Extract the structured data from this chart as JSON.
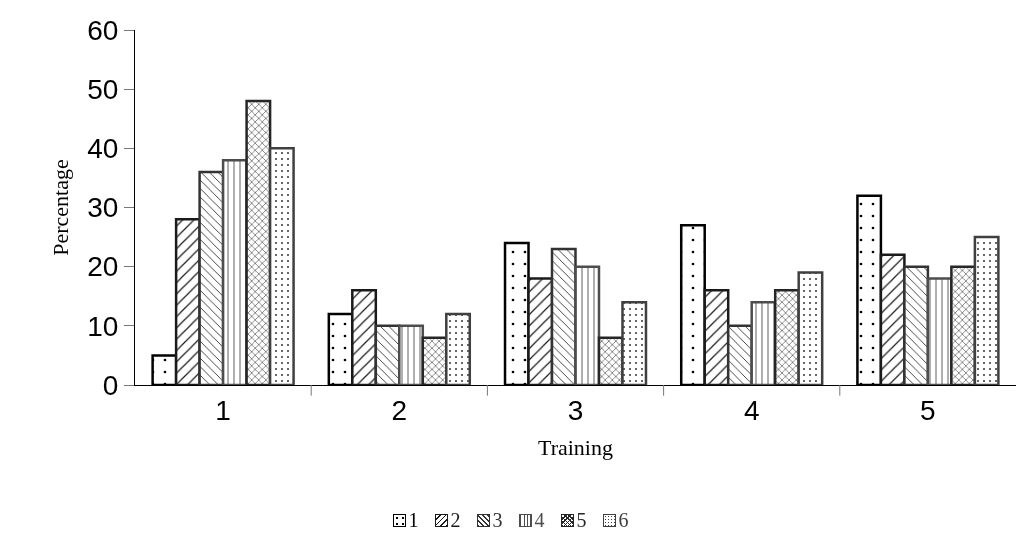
{
  "chart_data": {
    "type": "bar",
    "xlabel": "Training",
    "ylabel": "Percentage",
    "categories": [
      "1",
      "2",
      "3",
      "4",
      "5"
    ],
    "series": [
      {
        "name": "1",
        "color": "#000000",
        "values": [
          5,
          12,
          24,
          27,
          32
        ]
      },
      {
        "name": "2",
        "color": "#1a1a1a",
        "values": [
          28,
          16,
          18,
          16,
          22
        ]
      },
      {
        "name": "3",
        "color": "#333333",
        "values": [
          36,
          10,
          23,
          10,
          20
        ]
      },
      {
        "name": "4",
        "color": "#4d4d4d",
        "values": [
          38,
          10,
          20,
          14,
          18
        ]
      },
      {
        "name": "5",
        "color": "#262626",
        "values": [
          48,
          8,
          8,
          16,
          20
        ]
      },
      {
        "name": "6",
        "color": "#404040",
        "values": [
          40,
          12,
          14,
          19,
          25
        ]
      }
    ],
    "ylim": [
      0,
      60
    ],
    "yticks": [
      0,
      10,
      20,
      30,
      40,
      50,
      60
    ],
    "grid": false,
    "legend": "bottom"
  }
}
